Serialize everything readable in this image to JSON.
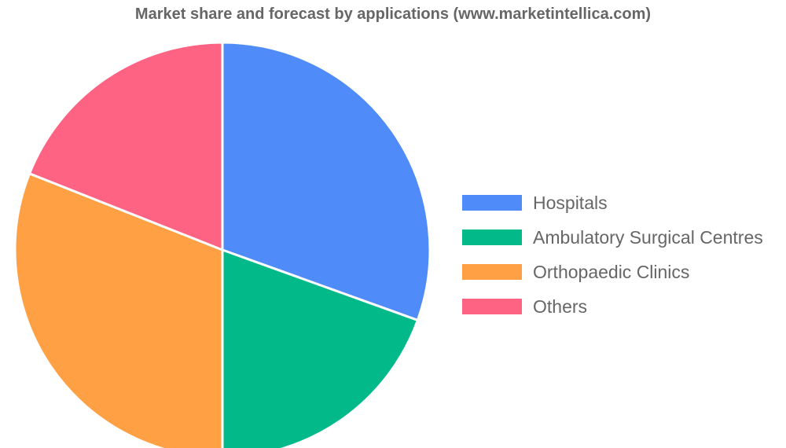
{
  "chart_data": {
    "type": "pie",
    "title": "Market share and forecast by applications (www.marketintellica.com)",
    "categories": [
      "Hospitals",
      "Ambulatory Surgical Centres",
      "Orthopaedic Clinics",
      "Others"
    ],
    "values": [
      30.5,
      19.5,
      31,
      19
    ],
    "unit": "%",
    "colors": [
      "#4f8cf9",
      "#02b98a",
      "#fea043",
      "#fe6383"
    ],
    "legend_position": "right"
  }
}
